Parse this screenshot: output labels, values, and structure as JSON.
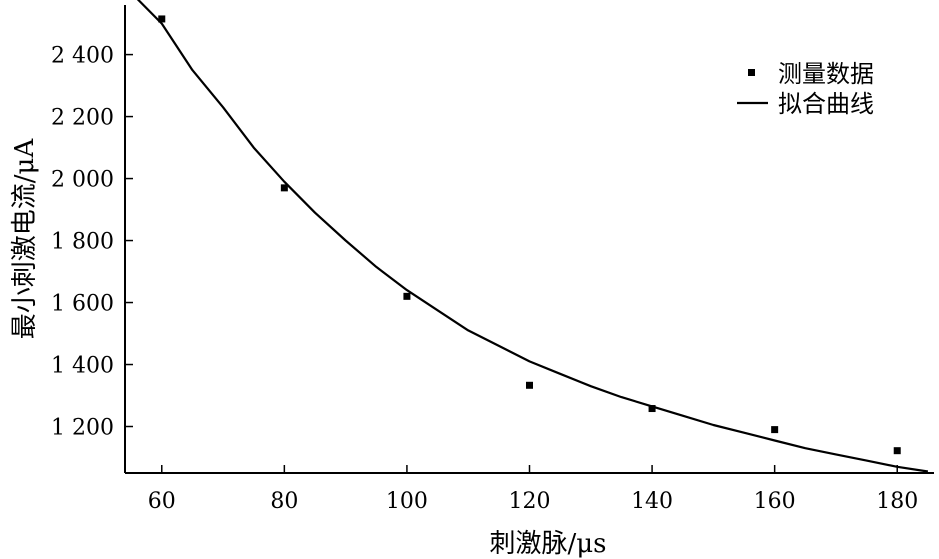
{
  "chart_data": {
    "type": "scatter",
    "title": "",
    "xlabel": "刺激脉/μs",
    "ylabel": "最小刺激电流/μA",
    "xlim": [
      54,
      186
    ],
    "ylim": [
      1050,
      2560
    ],
    "xticks": [
      60,
      80,
      100,
      120,
      140,
      160,
      180
    ],
    "xtick_labels": [
      "60",
      "80",
      "100",
      "120",
      "140",
      "160",
      "180"
    ],
    "yticks": [
      1200,
      1400,
      1600,
      1800,
      2000,
      2200,
      2400
    ],
    "ytick_labels": [
      "1 200",
      "1 400",
      "1 600",
      "1 800",
      "2 000",
      "2 200",
      "2 400"
    ],
    "grid": false,
    "legend_position": "top-right",
    "series": [
      {
        "name": "测量数据",
        "kind": "scatter",
        "marker": "square",
        "color": "#000000",
        "x": [
          60,
          80,
          100,
          120,
          140,
          160,
          180
        ],
        "y": [
          2515,
          1970,
          1620,
          1333,
          1258,
          1190,
          1122
        ]
      },
      {
        "name": "拟合曲线",
        "kind": "line",
        "color": "#000000",
        "x": [
          55,
          60,
          65,
          70,
          75,
          80,
          85,
          90,
          95,
          100,
          105,
          110,
          115,
          120,
          125,
          130,
          135,
          140,
          145,
          150,
          155,
          160,
          165,
          170,
          175,
          180,
          185
        ],
        "y": [
          2600,
          2500,
          2350,
          2230,
          2100,
          1990,
          1890,
          1800,
          1715,
          1640,
          1575,
          1510,
          1460,
          1410,
          1370,
          1330,
          1295,
          1265,
          1235,
          1205,
          1180,
          1155,
          1130,
          1110,
          1090,
          1070,
          1055
        ]
      }
    ]
  }
}
